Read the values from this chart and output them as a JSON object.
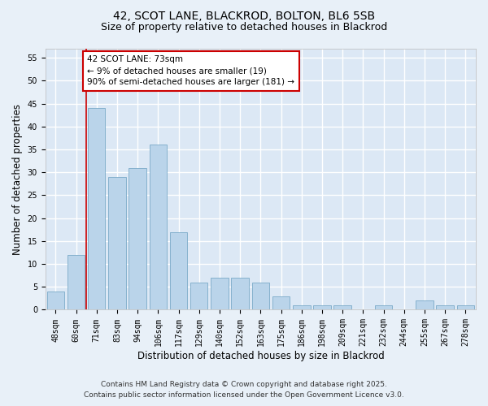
{
  "title1": "42, SCOT LANE, BLACKROD, BOLTON, BL6 5SB",
  "title2": "Size of property relative to detached houses in Blackrod",
  "xlabel": "Distribution of detached houses by size in Blackrod",
  "ylabel": "Number of detached properties",
  "categories": [
    "48sqm",
    "60sqm",
    "71sqm",
    "83sqm",
    "94sqm",
    "106sqm",
    "117sqm",
    "129sqm",
    "140sqm",
    "152sqm",
    "163sqm",
    "175sqm",
    "186sqm",
    "198sqm",
    "209sqm",
    "221sqm",
    "232sqm",
    "244sqm",
    "255sqm",
    "267sqm",
    "278sqm"
  ],
  "values": [
    4,
    12,
    44,
    29,
    31,
    36,
    17,
    6,
    7,
    7,
    6,
    3,
    1,
    1,
    1,
    0,
    1,
    0,
    2,
    1,
    1
  ],
  "bar_color": "#bad4ea",
  "bar_edge_color": "#7aaac8",
  "vline_color": "#cc0000",
  "vline_x_idx": 2,
  "annotation_text": "42 SCOT LANE: 73sqm\n← 9% of detached houses are smaller (19)\n90% of semi-detached houses are larger (181) →",
  "annotation_box_color": "white",
  "annotation_box_edge_color": "#cc0000",
  "ylim": [
    0,
    57
  ],
  "yticks": [
    0,
    5,
    10,
    15,
    20,
    25,
    30,
    35,
    40,
    45,
    50,
    55
  ],
  "bg_color": "#dce8f5",
  "plot_bg_color": "#dce8f5",
  "outer_bg_color": "#e8f0f8",
  "grid_color": "white",
  "footer_line1": "Contains HM Land Registry data © Crown copyright and database right 2025.",
  "footer_line2": "Contains public sector information licensed under the Open Government Licence v3.0.",
  "title_fontsize": 10,
  "subtitle_fontsize": 9,
  "axis_label_fontsize": 8.5,
  "tick_fontsize": 7,
  "annotation_fontsize": 7.5,
  "footer_fontsize": 6.5
}
